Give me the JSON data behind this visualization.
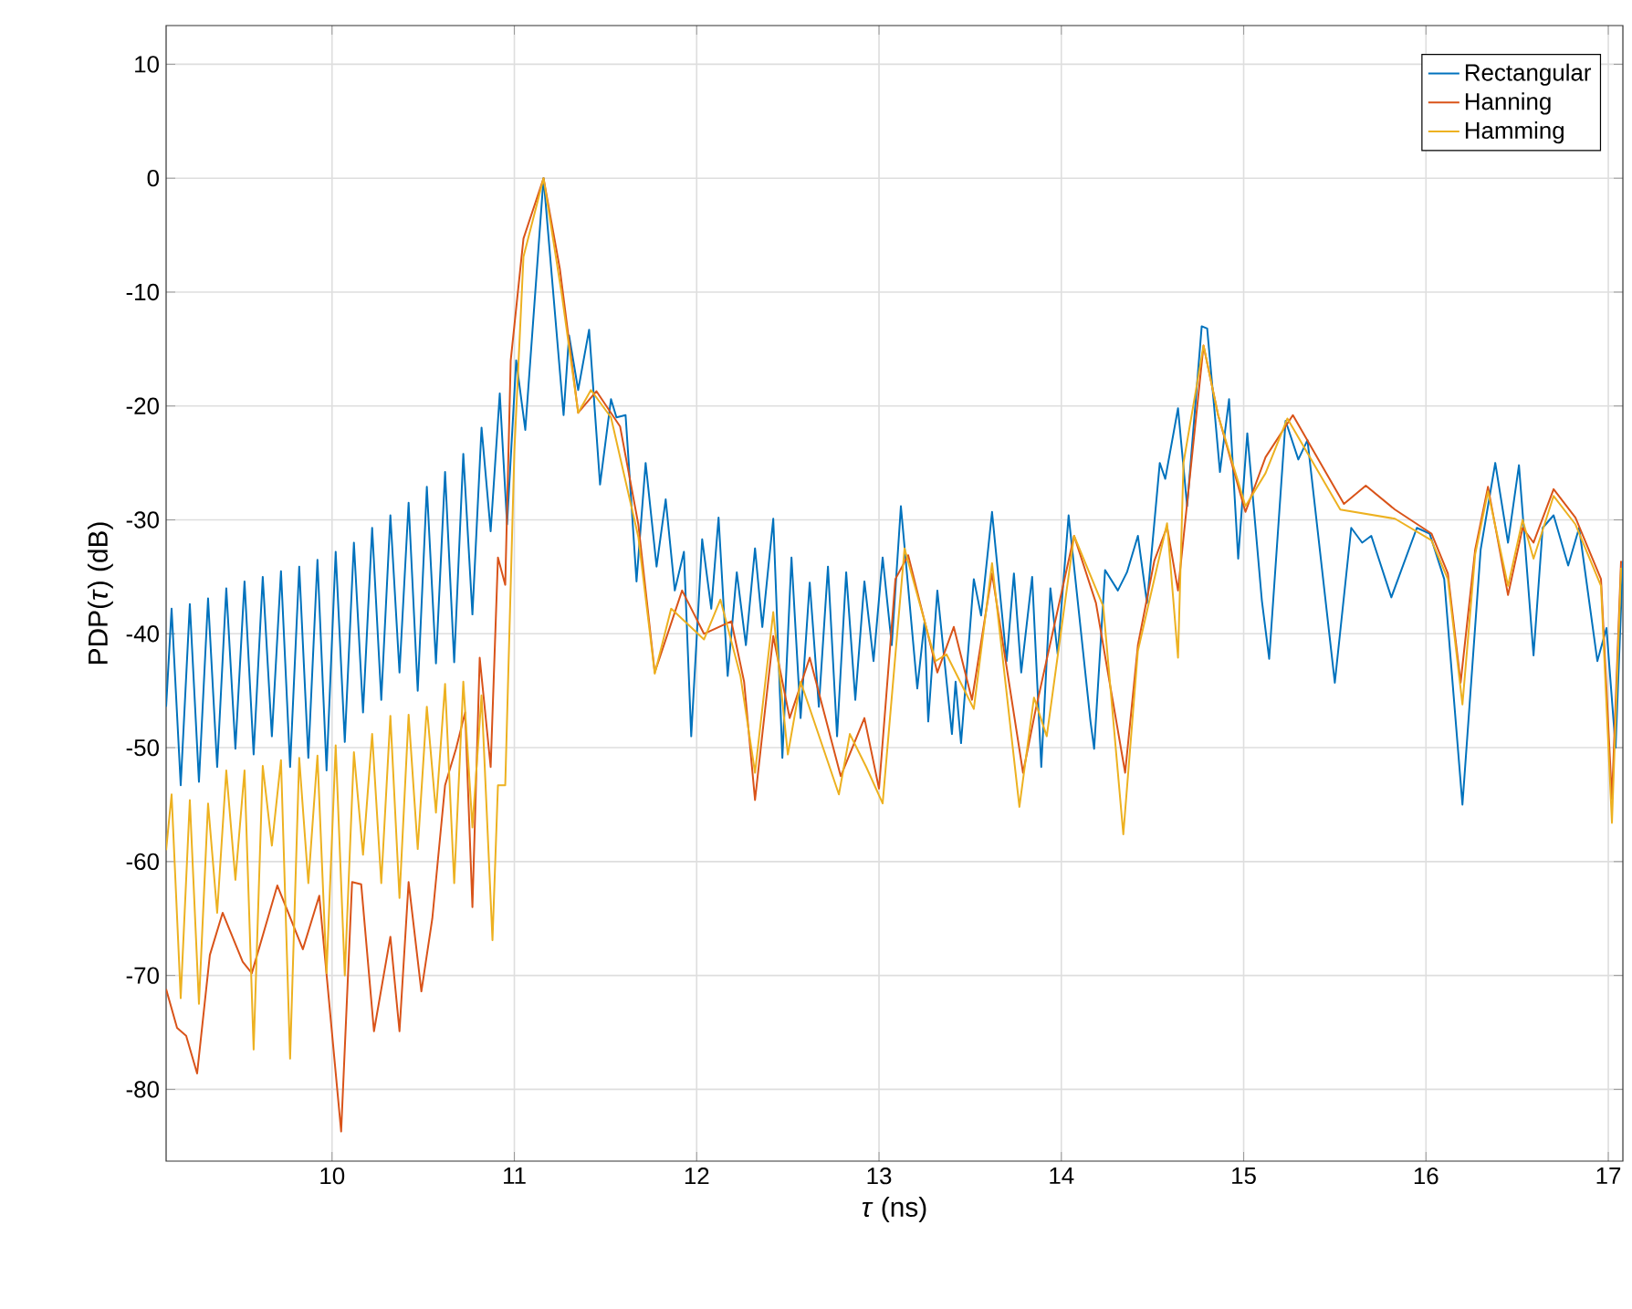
{
  "chart_data": {
    "type": "line",
    "xlabel": "*τ* (ns)",
    "ylabel": "PDP(*τ*) (dB)",
    "xlim": [
      9.09,
      17.08
    ],
    "ylim": [
      -86.3,
      13.4
    ],
    "xticks": [
      10,
      11,
      12,
      13,
      14,
      15,
      16,
      17
    ],
    "yticks": [
      -80,
      -70,
      -60,
      -50,
      -40,
      -30,
      -20,
      -10,
      0,
      10
    ],
    "grid": true,
    "legend": "top right",
    "marker": "none",
    "line_style": "solid",
    "series": [
      {
        "name": "Rectangular",
        "color": "#0072bd",
        "x": [
          9.09,
          9.12,
          9.17,
          9.22,
          9.27,
          9.32,
          9.37,
          9.42,
          9.47,
          9.52,
          9.57,
          9.62,
          9.67,
          9.72,
          9.77,
          9.82,
          9.87,
          9.92,
          9.97,
          10.02,
          10.07,
          10.12,
          10.17,
          10.22,
          10.27,
          10.32,
          10.37,
          10.42,
          10.47,
          10.52,
          10.57,
          10.62,
          10.67,
          10.72,
          10.77,
          10.82,
          10.87,
          10.92,
          10.96,
          11.01,
          11.06,
          11.16,
          11.27,
          11.3,
          11.35,
          11.41,
          11.47,
          11.53,
          11.56,
          11.61,
          11.67,
          11.72,
          11.78,
          11.83,
          11.88,
          11.93,
          11.97,
          12.03,
          12.08,
          12.12,
          12.17,
          12.22,
          12.27,
          12.32,
          12.36,
          12.42,
          12.47,
          12.52,
          12.57,
          12.62,
          12.67,
          12.72,
          12.77,
          12.82,
          12.87,
          12.92,
          12.97,
          13.02,
          13.07,
          13.12,
          13.21,
          13.25,
          13.27,
          13.32,
          13.4,
          13.42,
          13.45,
          13.52,
          13.56,
          13.62,
          13.7,
          13.74,
          13.78,
          13.84,
          13.89,
          13.94,
          13.98,
          14.04,
          14.16,
          14.18,
          14.24,
          14.31,
          14.36,
          14.42,
          14.47,
          14.54,
          14.57,
          14.64,
          14.69,
          14.77,
          14.8,
          14.87,
          14.92,
          14.97,
          15.02,
          15.1,
          15.14,
          15.23,
          15.3,
          15.35,
          15.5,
          15.59,
          15.65,
          15.7,
          15.81,
          15.95,
          16.02,
          16.1,
          16.2,
          16.3,
          16.38,
          16.45,
          16.51,
          16.59,
          16.64,
          16.7,
          16.78,
          16.84,
          16.94,
          16.99,
          17.04,
          17.08
        ],
        "values": [
          -46.4,
          -37.8,
          -53.3,
          -37.4,
          -53.0,
          -36.9,
          -51.7,
          -36.0,
          -50.1,
          -35.4,
          -50.6,
          -35.0,
          -49.0,
          -34.5,
          -51.7,
          -34.1,
          -50.9,
          -33.5,
          -52.0,
          -32.8,
          -49.5,
          -32.0,
          -46.9,
          -30.7,
          -45.8,
          -29.6,
          -43.4,
          -28.5,
          -45.0,
          -27.1,
          -42.6,
          -25.8,
          -42.5,
          -24.2,
          -38.3,
          -21.9,
          -31.0,
          -18.9,
          -30.4,
          -16.0,
          -22.1,
          0,
          -20.8,
          -13.8,
          -18.6,
          -13.3,
          -26.9,
          -19.4,
          -21.0,
          -20.8,
          -35.4,
          -25.0,
          -34.1,
          -28.2,
          -36.2,
          -32.8,
          -49.0,
          -31.7,
          -37.8,
          -29.8,
          -43.7,
          -34.6,
          -41.0,
          -32.5,
          -39.4,
          -29.9,
          -50.9,
          -33.3,
          -47.4,
          -35.5,
          -46.4,
          -34.1,
          -49.0,
          -34.6,
          -45.8,
          -35.4,
          -42.4,
          -33.3,
          -41.0,
          -28.8,
          -44.8,
          -38.9,
          -47.7,
          -36.2,
          -48.8,
          -44.2,
          -49.6,
          -35.2,
          -38.4,
          -29.3,
          -42.4,
          -34.7,
          -43.4,
          -35.0,
          -51.7,
          -36.0,
          -41.8,
          -29.6,
          -47.7,
          -50.1,
          -34.4,
          -36.2,
          -34.6,
          -31.4,
          -37.3,
          -25.0,
          -26.4,
          -20.2,
          -28.8,
          -13.0,
          -13.2,
          -25.8,
          -19.4,
          -33.4,
          -22.4,
          -37.1,
          -42.2,
          -21.3,
          -24.7,
          -23.0,
          -44.3,
          -30.7,
          -32.0,
          -31.4,
          -36.8,
          -30.7,
          -31.2,
          -35.2,
          -55.0,
          -32.6,
          -25.0,
          -32.0,
          -25.2,
          -41.9,
          -30.7,
          -29.6,
          -34.0,
          -30.7,
          -42.4,
          -39.5,
          -50.0,
          -33.6
        ]
      },
      {
        "name": "Hanning",
        "color": "#d95319",
        "x": [
          9.09,
          9.15,
          9.2,
          9.26,
          9.33,
          9.4,
          9.51,
          9.56,
          9.7,
          9.76,
          9.84,
          9.93,
          10.05,
          10.11,
          10.16,
          10.23,
          10.32,
          10.37,
          10.42,
          10.49,
          10.55,
          10.62,
          10.68,
          10.73,
          10.77,
          10.81,
          10.87,
          10.91,
          10.95,
          10.98,
          11.05,
          11.16,
          11.25,
          11.35,
          11.45,
          11.58,
          11.68,
          11.77,
          11.92,
          12.04,
          12.19,
          12.26,
          12.32,
          12.42,
          12.51,
          12.62,
          12.79,
          12.92,
          13.0,
          13.09,
          13.16,
          13.32,
          13.41,
          13.51,
          13.62,
          13.79,
          13.86,
          14.07,
          14.19,
          14.35,
          14.42,
          14.51,
          14.58,
          14.64,
          14.78,
          14.86,
          15.01,
          15.12,
          15.27,
          15.55,
          15.67,
          15.83,
          16.03,
          16.12,
          16.19,
          16.27,
          16.34,
          16.45,
          16.53,
          16.59,
          16.7,
          16.82,
          16.96,
          17.02,
          17.07
        ],
        "values": [
          -71.2,
          -74.6,
          -75.3,
          -78.6,
          -68.2,
          -64.5,
          -68.8,
          -69.8,
          -62.1,
          -64.5,
          -67.7,
          -63.0,
          -83.7,
          -61.8,
          -62.0,
          -74.9,
          -66.6,
          -74.9,
          -61.8,
          -71.4,
          -65.0,
          -53.3,
          -50.1,
          -46.9,
          -64.0,
          -42.1,
          -51.7,
          -33.3,
          -35.7,
          -16.0,
          -5.3,
          0,
          -8.0,
          -20.6,
          -18.7,
          -21.8,
          -30.4,
          -43.4,
          -36.2,
          -40.0,
          -38.9,
          -44.2,
          -54.6,
          -40.2,
          -47.4,
          -42.1,
          -52.5,
          -47.4,
          -53.6,
          -35.2,
          -33.1,
          -43.4,
          -39.4,
          -45.8,
          -34.7,
          -52.2,
          -46.6,
          -31.4,
          -37.3,
          -52.2,
          -41.0,
          -33.6,
          -30.6,
          -36.2,
          -14.7,
          -20.8,
          -29.3,
          -24.5,
          -20.8,
          -28.6,
          -27.0,
          -29.1,
          -31.2,
          -34.7,
          -44.3,
          -32.6,
          -27.1,
          -36.6,
          -30.7,
          -32.0,
          -27.3,
          -29.8,
          -35.2,
          -54.5,
          -33.6
        ]
      },
      {
        "name": "Hamming",
        "color": "#edb120",
        "x": [
          9.09,
          9.12,
          9.17,
          9.22,
          9.27,
          9.32,
          9.37,
          9.42,
          9.47,
          9.52,
          9.57,
          9.62,
          9.67,
          9.72,
          9.77,
          9.82,
          9.87,
          9.92,
          9.97,
          10.02,
          10.07,
          10.12,
          10.17,
          10.22,
          10.27,
          10.32,
          10.37,
          10.42,
          10.47,
          10.52,
          10.57,
          10.62,
          10.67,
          10.72,
          10.77,
          10.82,
          10.88,
          10.91,
          10.95,
          11.0,
          11.05,
          11.16,
          11.26,
          11.35,
          11.42,
          11.53,
          11.68,
          11.77,
          11.86,
          12.04,
          12.13,
          12.24,
          12.32,
          12.42,
          12.5,
          12.57,
          12.78,
          12.84,
          12.93,
          13.02,
          13.14,
          13.31,
          13.37,
          13.52,
          13.62,
          13.77,
          13.85,
          13.92,
          14.07,
          14.23,
          14.34,
          14.42,
          14.58,
          14.64,
          14.67,
          14.78,
          14.86,
          15.01,
          15.12,
          15.24,
          15.53,
          15.83,
          16.03,
          16.12,
          16.2,
          16.27,
          16.34,
          16.45,
          16.53,
          16.59,
          16.7,
          16.82,
          16.96,
          17.02,
          17.07
        ],
        "values": [
          -59.0,
          -54.1,
          -72.0,
          -54.6,
          -72.5,
          -54.9,
          -64.5,
          -52.0,
          -61.6,
          -52.0,
          -76.5,
          -51.6,
          -58.6,
          -51.1,
          -77.3,
          -50.9,
          -61.9,
          -50.7,
          -69.8,
          -49.8,
          -70.0,
          -50.4,
          -59.4,
          -48.8,
          -61.9,
          -47.2,
          -63.2,
          -47.1,
          -58.9,
          -46.4,
          -55.7,
          -44.4,
          -61.9,
          -44.2,
          -57.0,
          -45.4,
          -66.9,
          -53.3,
          -53.3,
          -24.0,
          -6.9,
          0,
          -10.2,
          -20.6,
          -18.6,
          -21.0,
          -31.5,
          -43.5,
          -37.8,
          -40.5,
          -37.0,
          -43.7,
          -52.2,
          -38.1,
          -50.6,
          -44.2,
          -54.1,
          -48.8,
          -51.7,
          -54.9,
          -32.5,
          -42.4,
          -41.8,
          -46.6,
          -33.8,
          -55.2,
          -45.6,
          -49.0,
          -31.4,
          -37.6,
          -57.6,
          -41.5,
          -30.3,
          -42.1,
          -25.0,
          -14.7,
          -20.8,
          -28.8,
          -25.9,
          -21.1,
          -29.1,
          -29.9,
          -31.8,
          -35.2,
          -46.2,
          -33.0,
          -27.5,
          -35.8,
          -30.0,
          -33.4,
          -27.9,
          -30.4,
          -35.8,
          -56.6,
          -34.2
        ]
      }
    ]
  }
}
